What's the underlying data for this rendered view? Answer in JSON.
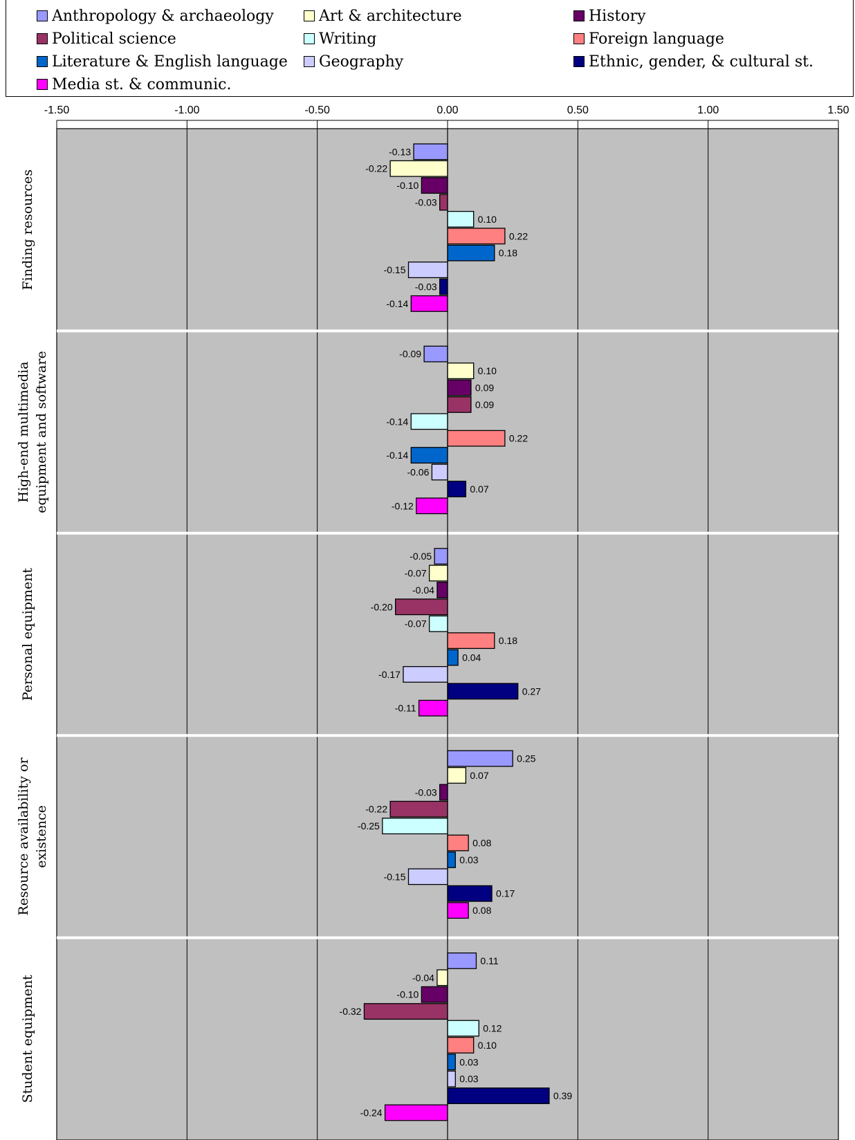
{
  "chart_data": {
    "type": "bar",
    "orientation": "horizontal",
    "xlim": [
      -1.5,
      1.5
    ],
    "x_ticks": [
      "-1.50",
      "-1.00",
      "-0.50",
      "0.00",
      "0.50",
      "1.00",
      "1.50"
    ],
    "x_tick_values": [
      -1.5,
      -1.0,
      -0.5,
      0.0,
      0.5,
      1.0,
      1.5
    ],
    "categories": [
      [
        "Finding resources"
      ],
      [
        "High-end multimedia",
        "equipment and software"
      ],
      [
        "Personal equipment"
      ],
      [
        "Resource availability or",
        "existence"
      ],
      [
        "Student equipment"
      ]
    ],
    "legend_position": "top",
    "grid": true,
    "colors": {
      "plot_background": "#c0c0c0",
      "category_separator": "#ffffff",
      "gridline": "#000000"
    },
    "series": [
      {
        "name": "Anthropology & archaeology",
        "color": "#9999ff",
        "values": [
          -0.13,
          -0.09,
          -0.05,
          0.25,
          0.11
        ],
        "labels": [
          "-0.13",
          "-0.09",
          "-0.05",
          "0.25",
          "0.11"
        ]
      },
      {
        "name": "Art & architecture",
        "color": "#ffffcc",
        "values": [
          -0.22,
          0.1,
          -0.07,
          0.07,
          -0.04
        ],
        "labels": [
          "-0.22",
          "0.10",
          "-0.07",
          "0.07",
          "-0.04"
        ]
      },
      {
        "name": "History",
        "color": "#660066",
        "values": [
          -0.1,
          0.09,
          -0.04,
          -0.03,
          -0.1
        ],
        "labels": [
          "-0.10",
          "0.09",
          "-0.04",
          "-0.03",
          "-0.10"
        ]
      },
      {
        "name": "Political science",
        "color": "#993366",
        "values": [
          -0.03,
          0.09,
          -0.2,
          -0.22,
          -0.32
        ],
        "labels": [
          "-0.03",
          "0.09",
          "-0.20",
          "-0.22",
          "-0.32"
        ]
      },
      {
        "name": "Writing",
        "color": "#ccffff",
        "values": [
          0.1,
          -0.14,
          -0.07,
          -0.25,
          0.12
        ],
        "labels": [
          "0.10",
          "-0.14",
          "-0.07",
          "-0.25",
          "0.12"
        ]
      },
      {
        "name": "Foreign language",
        "color": "#ff8080",
        "values": [
          0.22,
          0.22,
          0.18,
          0.08,
          0.1
        ],
        "labels": [
          "0.22",
          "0.22",
          "0.18",
          "0.08",
          "0.10"
        ]
      },
      {
        "name": "Literature & English language",
        "color": "#0066cc",
        "values": [
          0.18,
          -0.14,
          0.04,
          0.03,
          0.03
        ],
        "labels": [
          "0.18",
          "-0.14",
          "0.04",
          "0.03",
          "0.03"
        ]
      },
      {
        "name": "Geography",
        "color": "#ccccff",
        "values": [
          -0.15,
          -0.06,
          -0.17,
          -0.15,
          0.03
        ],
        "labels": [
          "-0.15",
          "-0.06",
          "-0.17",
          "-0.15",
          "0.03"
        ]
      },
      {
        "name": "Ethnic, gender, & cultural st.",
        "color": "#000080",
        "values": [
          -0.03,
          0.07,
          0.27,
          0.17,
          0.39
        ],
        "labels": [
          "-0.03",
          "0.07",
          "0.27",
          "0.17",
          "0.39"
        ]
      },
      {
        "name": "Media st. & communic.",
        "color": "#ff00ff",
        "values": [
          -0.14,
          -0.12,
          -0.11,
          0.08,
          -0.24
        ],
        "labels": [
          "-0.14",
          "-0.12",
          "-0.11",
          "0.08",
          "-0.24"
        ]
      }
    ]
  }
}
